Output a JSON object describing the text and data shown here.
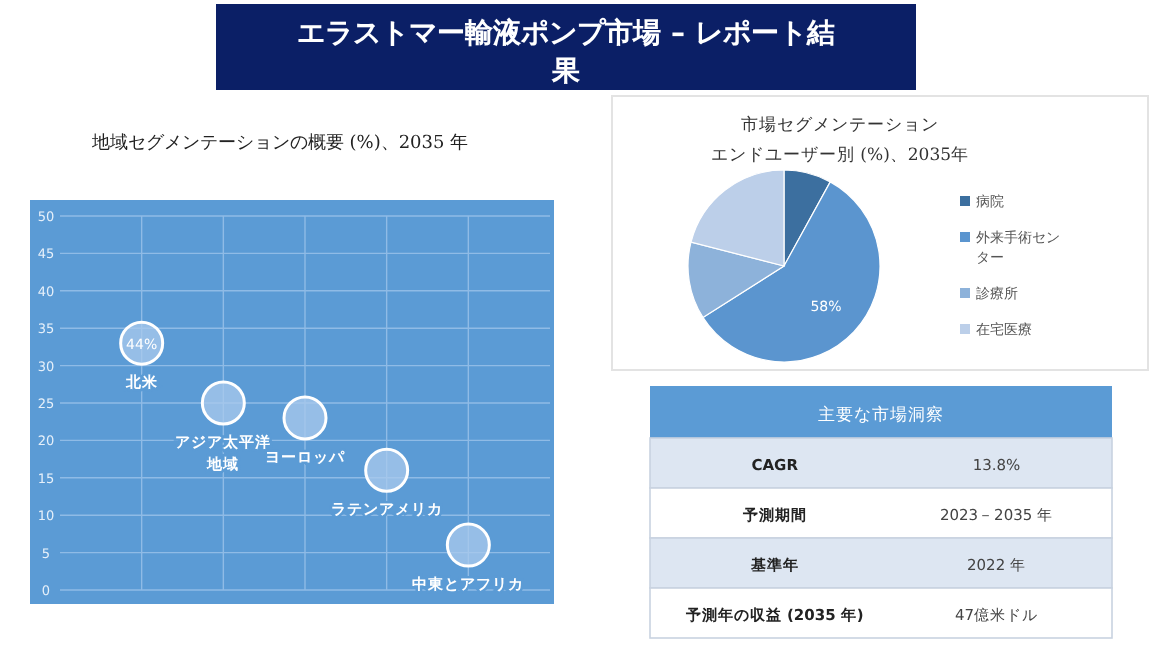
{
  "chart_data": [
    {
      "type": "scatter",
      "title": "エラストマー輸液ポンプ市場 – レポート結果",
      "subtitle": "地域セグメンテーションの概要 (%)、2035 年",
      "categories": [
        null,
        null,
        null,
        null,
        null
      ],
      "series": [
        {
          "color": "#a9c9ec",
          "values": [
            33,
            25,
            23,
            16,
            6
          ]
        }
      ],
      "marker": "circle",
      "ylim": [
        0,
        50
      ],
      "yticks": [
        0,
        5,
        10,
        15,
        20,
        25,
        30,
        35,
        40,
        45,
        50
      ],
      "grid": true,
      "annotations": [
        {
          "text": "44%",
          "y": 33
        },
        {
          "text": "北米",
          "y": 33
        },
        {
          "text": "アジア太平洋地域",
          "y": 25
        },
        {
          "text": "ヨーロッパ",
          "y": 23
        },
        {
          "text": "ラテンアメリカ",
          "y": 16
        },
        {
          "text": "中東とアフリカ",
          "y": 6
        }
      ]
    },
    {
      "type": "pie",
      "title": "市場セグメンテーション",
      "subtitle": "エンドユーザー別 (%)、2035年",
      "categories": [
        "病院",
        "外来手術センター",
        "診療所",
        "在宅医療"
      ],
      "values": [
        8,
        58,
        13,
        21
      ],
      "colors": [
        "#3c6f9f",
        "#5b95cf",
        "#8db2da",
        "#bccfe9"
      ],
      "value_labels": [
        null,
        "58%",
        null,
        null
      ],
      "legend": "right"
    },
    {
      "type": "other",
      "title": "主要な市場洞察",
      "annotations": [
        "CAGR",
        "13.8%",
        "予測期間",
        "2023－2035 年",
        "基準年",
        "2022 年",
        "予測年の収益 (2035 年)",
        "47億米ドル"
      ]
    }
  ]
}
